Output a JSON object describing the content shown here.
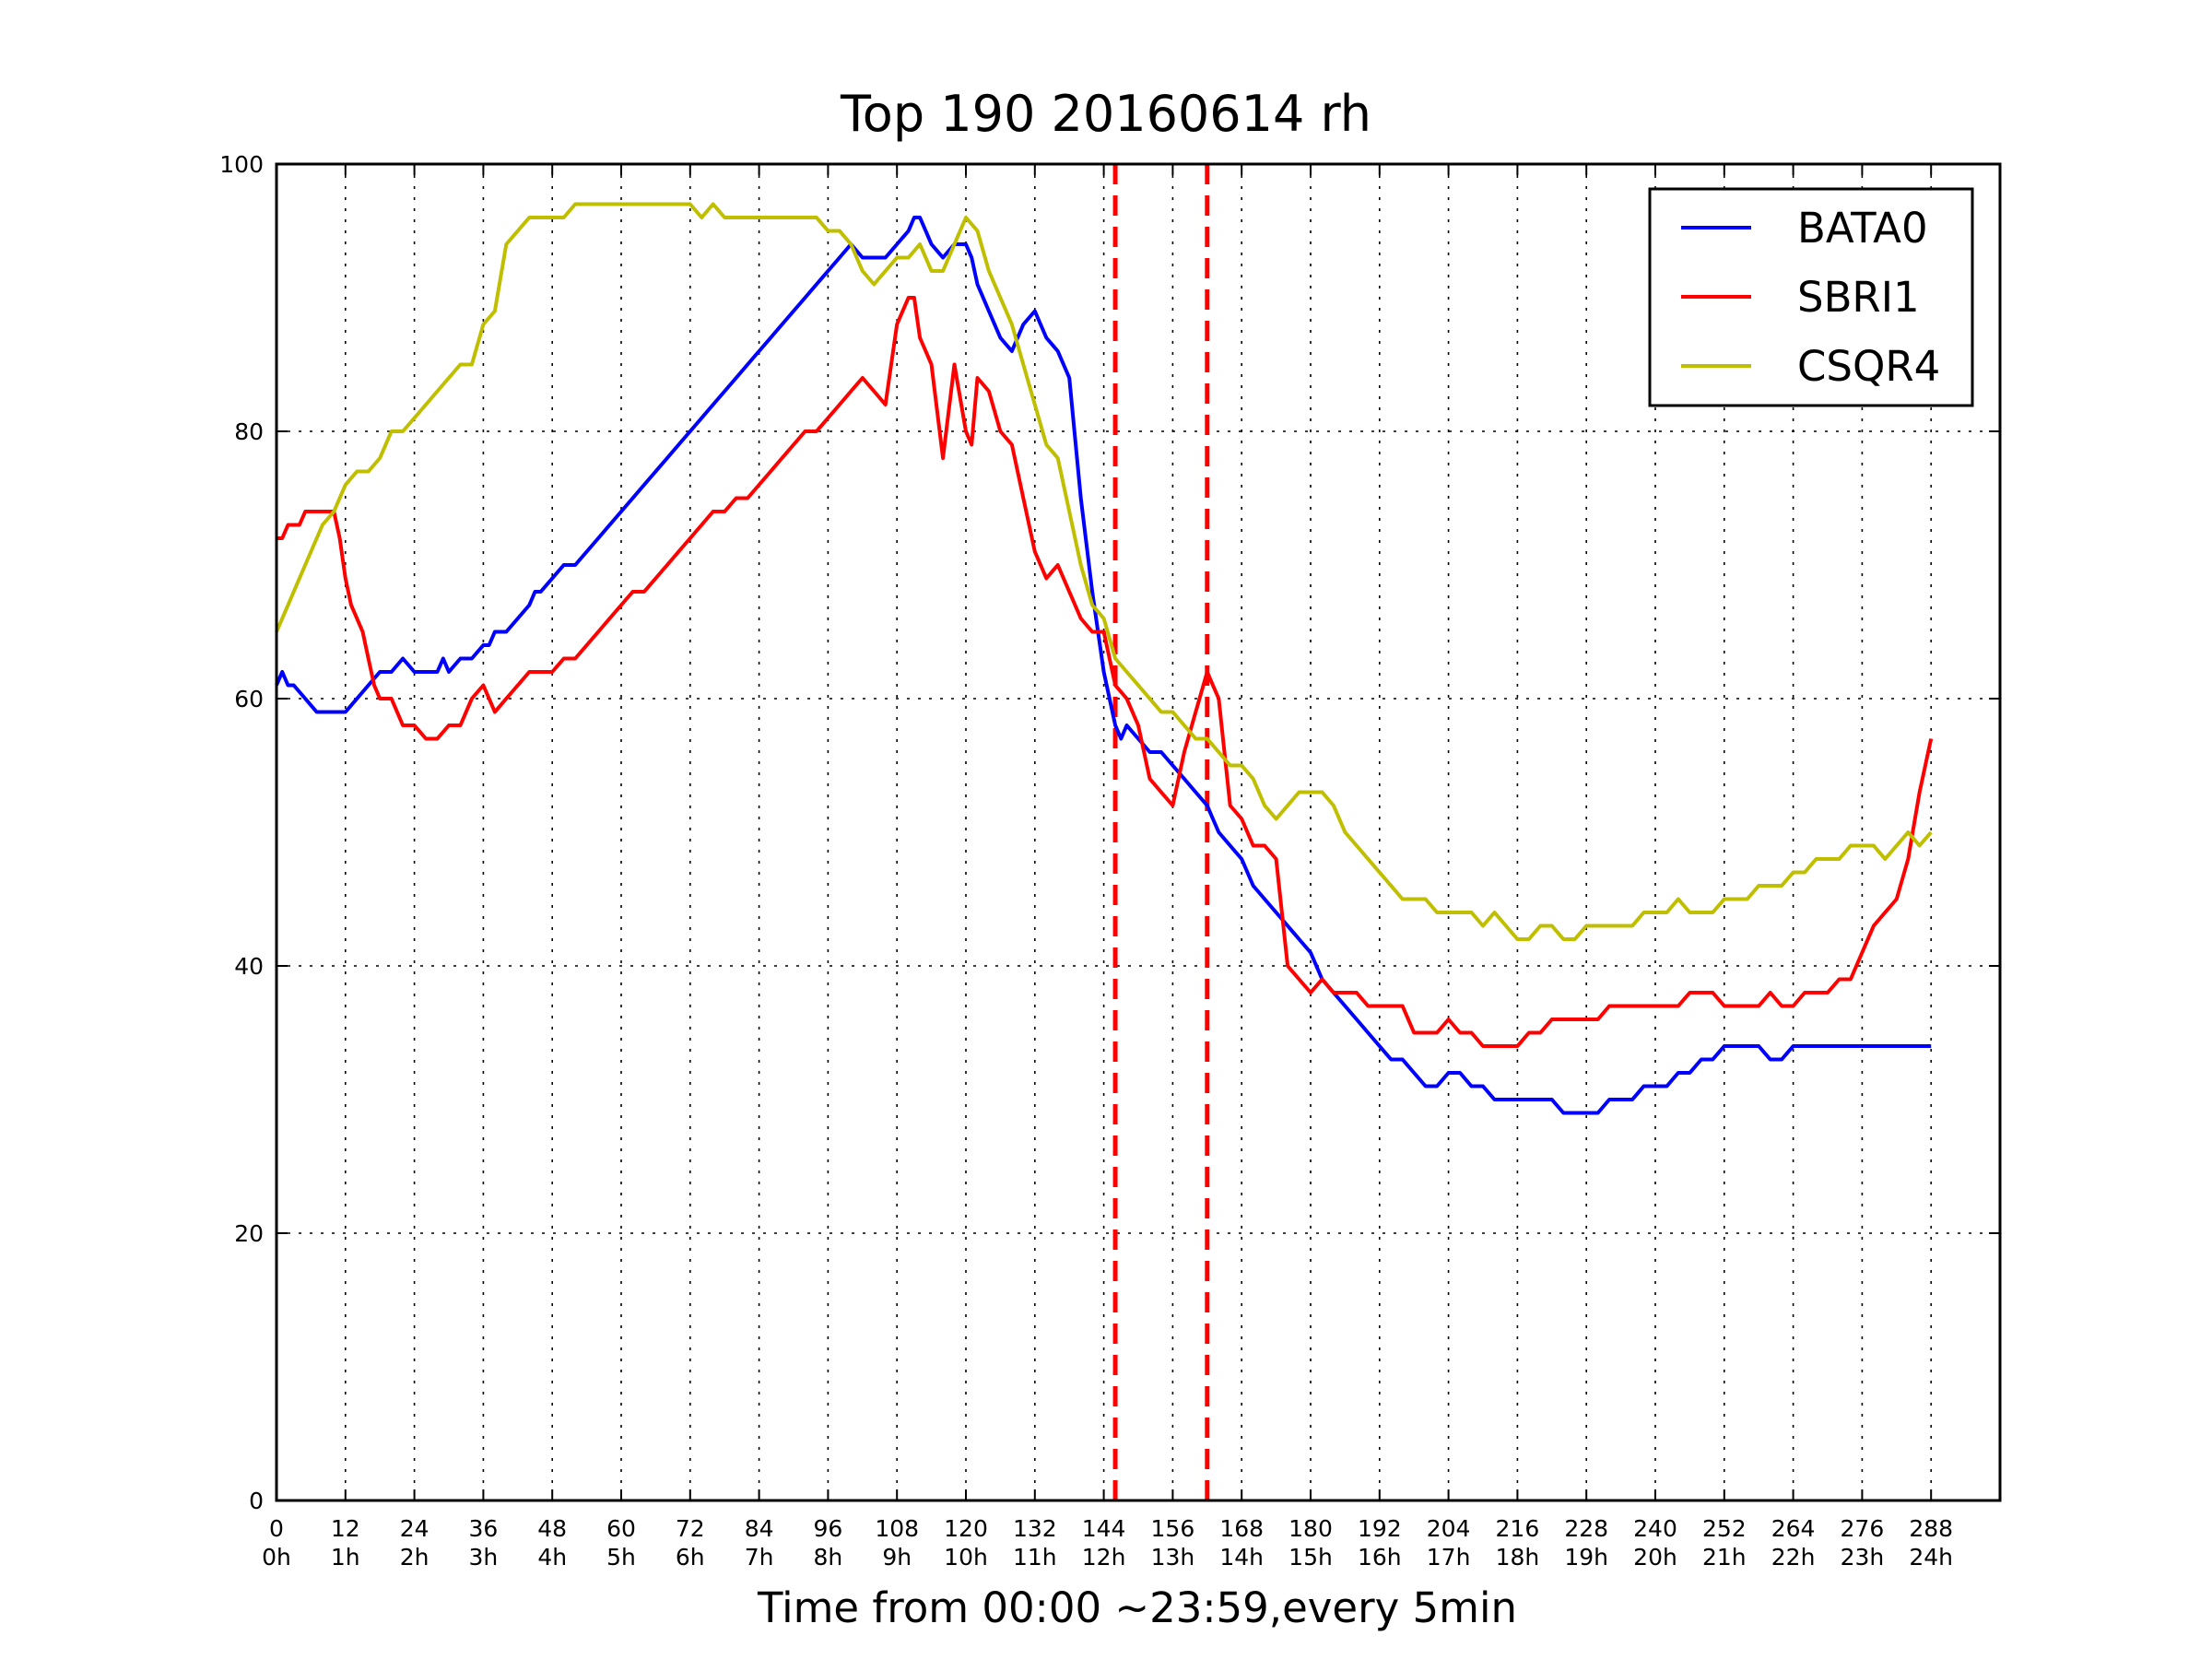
{
  "chart_data": {
    "type": "line",
    "title": "Top 190 20160614 rh",
    "xlabel": "Time from 00:00 ~23:59,every 5min",
    "ylabel": "",
    "xlim": [
      0,
      300
    ],
    "ylim": [
      0,
      100
    ],
    "grid": true,
    "legend_position": "top-right",
    "x_ticks": [
      0,
      12,
      24,
      36,
      48,
      60,
      72,
      84,
      96,
      108,
      120,
      132,
      144,
      156,
      168,
      180,
      192,
      204,
      216,
      228,
      240,
      252,
      264,
      276,
      288
    ],
    "x_tick_labels_top": [
      "0",
      "12",
      "24",
      "36",
      "48",
      "60",
      "72",
      "84",
      "96",
      "108",
      "120",
      "132",
      "144",
      "156",
      "168",
      "180",
      "192",
      "204",
      "216",
      "228",
      "240",
      "252",
      "264",
      "276",
      "288"
    ],
    "x_tick_labels_bottom": [
      "0h",
      "1h",
      "2h",
      "3h",
      "4h",
      "5h",
      "6h",
      "7h",
      "8h",
      "9h",
      "10h",
      "11h",
      "12h",
      "13h",
      "14h",
      "15h",
      "16h",
      "17h",
      "18h",
      "19h",
      "20h",
      "21h",
      "22h",
      "23h",
      "24h"
    ],
    "y_ticks": [
      0,
      20,
      40,
      60,
      80,
      100
    ],
    "y_tick_labels": [
      "0",
      "20",
      "40",
      "60",
      "80",
      "100"
    ],
    "vlines": [
      {
        "x": 146,
        "color": "#ff0000",
        "style": "dashed"
      },
      {
        "x": 162,
        "color": "#ff0000",
        "style": "dashed"
      }
    ],
    "series": [
      {
        "name": "BATA0",
        "color": "#0000ff",
        "x": [
          0,
          1,
          2,
          3,
          5,
          7,
          9,
          12,
          14,
          16,
          18,
          20,
          22,
          24,
          25,
          26,
          27,
          28,
          29,
          30,
          32,
          34,
          36,
          37,
          38,
          40,
          42,
          44,
          45,
          46,
          48,
          50,
          52,
          54,
          56,
          58,
          60,
          62,
          64,
          66,
          68,
          70,
          72,
          74,
          76,
          78,
          80,
          82,
          84,
          86,
          88,
          90,
          92,
          94,
          96,
          98,
          100,
          102,
          104,
          106,
          108,
          110,
          111,
          112,
          113,
          114,
          116,
          118,
          120,
          121,
          122,
          124,
          126,
          128,
          130,
          132,
          134,
          136,
          138,
          140,
          142,
          144,
          146,
          147,
          148,
          150,
          152,
          154,
          156,
          158,
          160,
          162,
          163,
          164,
          166,
          168,
          170,
          172,
          174,
          176,
          178,
          180,
          182,
          184,
          186,
          188,
          190,
          192,
          194,
          196,
          198,
          200,
          202,
          204,
          206,
          208,
          210,
          212,
          214,
          216,
          218,
          220,
          222,
          224,
          226,
          228,
          230,
          232,
          234,
          236,
          238,
          240,
          242,
          244,
          246,
          248,
          250,
          252,
          254,
          256,
          258,
          260,
          262,
          264,
          266,
          268,
          270,
          272,
          274,
          276,
          278,
          280,
          282,
          284,
          286,
          288
        ],
        "y": [
          61,
          62,
          61,
          61,
          60,
          59,
          59,
          59,
          60,
          61,
          62,
          62,
          63,
          62,
          62,
          62,
          62,
          62,
          63,
          62,
          63,
          63,
          64,
          64,
          65,
          65,
          66,
          67,
          68,
          68,
          69,
          70,
          70,
          71,
          72,
          73,
          74,
          75,
          76,
          77,
          78,
          79,
          80,
          81,
          82,
          83,
          84,
          85,
          86,
          87,
          88,
          89,
          90,
          91,
          92,
          93,
          94,
          93,
          93,
          93,
          94,
          95,
          96,
          96,
          95,
          94,
          93,
          94,
          94,
          93,
          91,
          89,
          87,
          86,
          88,
          89,
          87,
          86,
          84,
          75,
          68,
          62,
          58,
          57,
          58,
          57,
          56,
          56,
          55,
          54,
          53,
          52,
          51,
          50,
          49,
          48,
          46,
          45,
          44,
          43,
          42,
          41,
          39,
          38,
          37,
          36,
          35,
          34,
          33,
          33,
          32,
          31,
          31,
          32,
          32,
          31,
          31,
          30,
          30,
          30,
          30,
          30,
          30,
          29,
          29,
          29,
          29,
          30,
          30,
          30,
          31,
          31,
          31,
          32,
          32,
          33,
          33,
          34,
          34,
          34,
          34,
          33,
          33,
          34,
          34,
          34,
          34,
          34,
          34,
          34,
          34,
          34,
          34,
          34,
          34,
          34
        ],
        "note_hidden": false
      },
      {
        "name": "SBRI1",
        "color": "#ff0000",
        "x": [
          0,
          1,
          2,
          3,
          4,
          5,
          6,
          8,
          9,
          10,
          11,
          12,
          13,
          14,
          15,
          16,
          17,
          18,
          20,
          22,
          24,
          26,
          28,
          30,
          32,
          34,
          36,
          38,
          40,
          42,
          44,
          46,
          48,
          50,
          52,
          54,
          56,
          58,
          60,
          62,
          64,
          66,
          68,
          70,
          72,
          74,
          76,
          78,
          80,
          82,
          84,
          86,
          88,
          90,
          92,
          94,
          96,
          98,
          100,
          102,
          104,
          106,
          108,
          109,
          110,
          111,
          112,
          113,
          114,
          116,
          118,
          120,
          121,
          122,
          124,
          126,
          128,
          130,
          132,
          134,
          136,
          138,
          140,
          142,
          144,
          146,
          148,
          150,
          152,
          154,
          156,
          158,
          160,
          162,
          163,
          164,
          166,
          168,
          170,
          172,
          174,
          176,
          178,
          180,
          182,
          184,
          186,
          188,
          190,
          192,
          194,
          196,
          198,
          200,
          202,
          204,
          206,
          208,
          210,
          212,
          214,
          216,
          218,
          220,
          222,
          224,
          226,
          228,
          230,
          232,
          234,
          236,
          238,
          240,
          242,
          244,
          246,
          248,
          250,
          252,
          254,
          256,
          258,
          260,
          262,
          264,
          266,
          268,
          270,
          272,
          274,
          276,
          278,
          280,
          282,
          284,
          286,
          288
        ],
        "y": [
          72,
          72,
          73,
          73,
          73,
          74,
          74,
          74,
          74,
          74,
          72,
          69,
          67,
          66,
          65,
          63,
          61,
          60,
          60,
          58,
          58,
          57,
          57,
          58,
          58,
          60,
          61,
          59,
          60,
          61,
          62,
          62,
          62,
          63,
          63,
          64,
          65,
          66,
          67,
          68,
          68,
          69,
          70,
          71,
          72,
          73,
          74,
          74,
          75,
          75,
          76,
          77,
          78,
          79,
          80,
          80,
          81,
          82,
          83,
          84,
          83,
          82,
          88,
          89,
          90,
          90,
          87,
          86,
          85,
          78,
          85,
          80,
          79,
          84,
          83,
          80,
          79,
          75,
          71,
          69,
          70,
          68,
          66,
          65,
          65,
          61,
          60,
          58,
          54,
          53,
          52,
          56,
          59,
          62,
          61,
          60,
          52,
          51,
          49,
          49,
          48,
          40,
          39,
          38,
          39,
          38,
          38,
          38,
          37,
          37,
          37,
          37,
          35,
          35,
          35,
          36,
          35,
          35,
          34,
          34,
          34,
          34,
          35,
          35,
          36,
          36,
          36,
          36,
          36,
          37,
          37,
          37,
          37,
          37,
          37,
          37,
          38,
          38,
          38,
          37,
          37,
          37,
          37,
          38,
          37,
          37,
          38,
          38,
          38,
          39,
          39,
          41,
          43,
          44,
          45,
          48,
          53,
          57
        ],
        "note_hidden": false
      },
      {
        "name": "CSQR4",
        "color": "#bfbf00",
        "x": [
          0,
          2,
          4,
          6,
          8,
          10,
          12,
          14,
          16,
          18,
          20,
          22,
          24,
          26,
          28,
          30,
          32,
          34,
          36,
          38,
          40,
          42,
          44,
          46,
          48,
          50,
          52,
          54,
          56,
          58,
          60,
          62,
          64,
          66,
          68,
          70,
          72,
          74,
          76,
          78,
          80,
          82,
          84,
          86,
          88,
          90,
          92,
          94,
          96,
          98,
          100,
          102,
          104,
          106,
          108,
          110,
          112,
          114,
          116,
          118,
          120,
          122,
          124,
          126,
          128,
          130,
          132,
          134,
          136,
          138,
          140,
          142,
          144,
          146,
          148,
          150,
          152,
          154,
          156,
          158,
          160,
          162,
          164,
          166,
          168,
          170,
          172,
          174,
          176,
          178,
          180,
          182,
          184,
          186,
          188,
          190,
          192,
          194,
          196,
          198,
          200,
          202,
          204,
          206,
          208,
          210,
          212,
          214,
          216,
          218,
          220,
          222,
          224,
          226,
          228,
          230,
          232,
          234,
          236,
          238,
          240,
          242,
          244,
          246,
          248,
          250,
          252,
          254,
          256,
          258,
          260,
          262,
          264,
          266,
          268,
          270,
          272,
          274,
          276,
          278,
          280,
          282,
          284,
          286,
          288
        ],
        "y": [
          65,
          67,
          69,
          71,
          73,
          74,
          76,
          77,
          77,
          78,
          80,
          80,
          81,
          82,
          83,
          84,
          85,
          85,
          88,
          89,
          94,
          95,
          96,
          96,
          96,
          96,
          97,
          97,
          97,
          97,
          97,
          97,
          97,
          97,
          97,
          97,
          97,
          96,
          97,
          96,
          96,
          96,
          96,
          96,
          96,
          96,
          96,
          96,
          95,
          95,
          94,
          92,
          91,
          92,
          93,
          93,
          94,
          92,
          92,
          94,
          96,
          95,
          92,
          90,
          88,
          85,
          82,
          79,
          78,
          74,
          70,
          67,
          66,
          63,
          62,
          61,
          60,
          59,
          59,
          58,
          57,
          57,
          56,
          55,
          55,
          54,
          52,
          51,
          52,
          53,
          53,
          53,
          52,
          50,
          49,
          48,
          47,
          46,
          45,
          45,
          45,
          44,
          44,
          44,
          44,
          43,
          44,
          43,
          42,
          42,
          43,
          43,
          42,
          42,
          43,
          43,
          43,
          43,
          43,
          44,
          44,
          44,
          45,
          44,
          44,
          44,
          45,
          45,
          45,
          46,
          46,
          46,
          47,
          47,
          48,
          48,
          48,
          49,
          49,
          49,
          48,
          49,
          50,
          49,
          50
        ],
        "note_hidden": false
      }
    ]
  }
}
